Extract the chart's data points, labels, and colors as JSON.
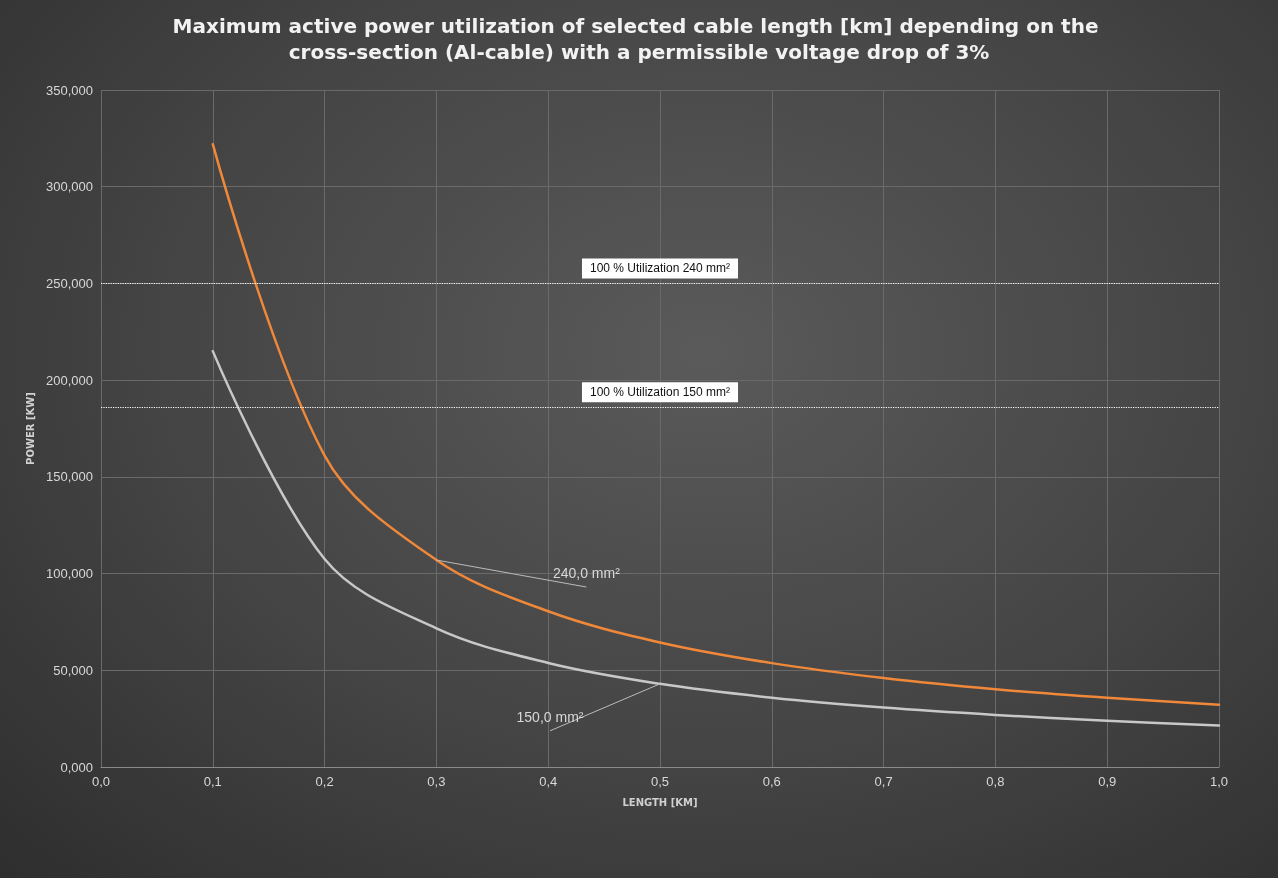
{
  "chart_data": {
    "type": "line",
    "title": "Maximum active power utilization of selected cable length [km] depending on the cross-section (Al-cable) with a permissible voltage drop of 3%",
    "xlabel": "LENGTH [KM]",
    "ylabel": "POWER [KW]",
    "x": [
      0.1,
      0.2,
      0.3,
      0.4,
      0.5,
      0.6,
      0.7,
      0.8,
      0.9,
      1.0
    ],
    "series": [
      {
        "name": "240,0 mm²",
        "color": "#f0883a",
        "values": [
          322,
          161,
          107,
          80.5,
          64.4,
          53.7,
          46,
          40.2,
          35.8,
          32.2
        ]
      },
      {
        "name": "150,0 mm²",
        "color": "#c8c8c8",
        "values": [
          215,
          107.5,
          71.7,
          53.8,
          43,
          35.8,
          30.7,
          26.9,
          23.9,
          21.5
        ]
      }
    ],
    "xlim": [
      0,
      1
    ],
    "xticks": [
      {
        "value": 0,
        "label": "0,0"
      },
      {
        "value": 0.1,
        "label": "0,1"
      },
      {
        "value": 0.2,
        "label": "0,2"
      },
      {
        "value": 0.3,
        "label": "0,3"
      },
      {
        "value": 0.4,
        "label": "0,4"
      },
      {
        "value": 0.5,
        "label": "0,5"
      },
      {
        "value": 0.6,
        "label": "0,6"
      },
      {
        "value": 0.7,
        "label": "0,7"
      },
      {
        "value": 0.8,
        "label": "0,8"
      },
      {
        "value": 0.9,
        "label": "0,9"
      },
      {
        "value": 1,
        "label": "1,0"
      }
    ],
    "ylim": [
      0,
      350
    ],
    "yticks": [
      {
        "value": 0,
        "label": "0,000"
      },
      {
        "value": 50,
        "label": "50,000"
      },
      {
        "value": 100,
        "label": "100,000"
      },
      {
        "value": 150,
        "label": "150,000"
      },
      {
        "value": 200,
        "label": "200,000"
      },
      {
        "value": 250,
        "label": "250,000"
      },
      {
        "value": 300,
        "label": "300,000"
      },
      {
        "value": 350,
        "label": "350,000"
      }
    ],
    "ref_lines": [
      {
        "axis": "y",
        "value": 250,
        "label": "100 % Utilization 240 mm²",
        "color": "#ffffff",
        "line_style": "dotted"
      },
      {
        "axis": "y",
        "value": 186,
        "label": "100 % Utilization 150 mm²",
        "color": "#ffffff",
        "line_style": "dotted"
      }
    ],
    "grid": true,
    "legend": false,
    "marker": "none",
    "line_style": "solid"
  }
}
